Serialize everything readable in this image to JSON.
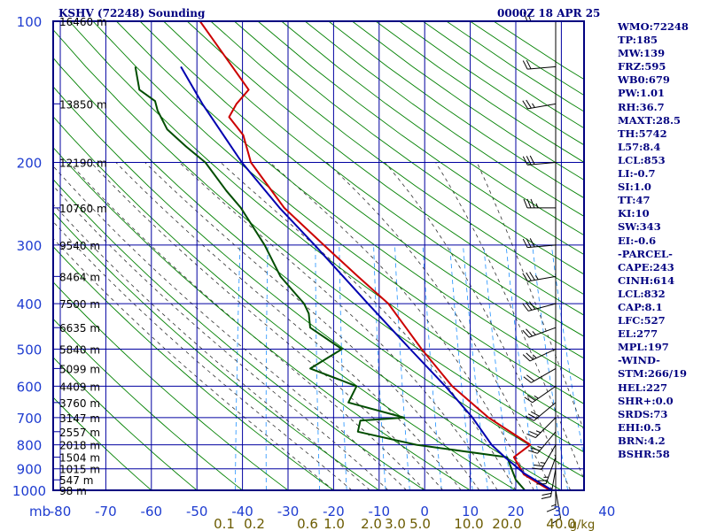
{
  "header": {
    "station": "KSHV (72248) Sounding",
    "time": "0000Z 18 APR 25"
  },
  "colors": {
    "frame": "#000080",
    "isobar": "#0000a0",
    "dry_adiabat": "#008000",
    "moist_adiabat": "#303030",
    "mixing_ratio": "#1e90ff",
    "temperature": "#cc0000",
    "dewpoint": "#004d00",
    "parcel": "#0000b0",
    "axis_label": "#1e3cd0",
    "mixing_label": "#6b5b00",
    "wind_barb": "#000000"
  },
  "indices": [
    "WMO:72248",
    "TP:185",
    "MW:139",
    "FRZ:595",
    "WB0:679",
    "PW:1.01",
    "RH:36.7",
    "MAXT:28.5",
    "TH:5742",
    "L57:8.4",
    "LCL:853",
    "LI:-0.7",
    "SI:1.0",
    "TT:47",
    "KI:10",
    "SW:343",
    "EI:-0.6",
    "-PARCEL-",
    "CAPE:243",
    "CINH:614",
    "LCL:832",
    "CAP:8.1",
    "LFC:527",
    "EL:277",
    "MPL:197",
    "-WIND-",
    "STM:266/19",
    "HEL:227",
    "SHR+:0.0",
    "SRDS:73",
    "EHI:0.5",
    "BRN:4.2",
    "BSHR:58"
  ],
  "chart_data": {
    "type": "line",
    "title": "KSHV (72248) Sounding",
    "diagram": "skew-T log-p",
    "x_axis": {
      "label": "",
      "unit_label": "mb",
      "ticks": [
        -80,
        -70,
        -60,
        -50,
        -40,
        -30,
        -20,
        -10,
        0,
        10,
        20,
        30,
        40
      ],
      "tick_labels": [
        "-80",
        "-70",
        "-60",
        "-50",
        "-40",
        "-30",
        "-20",
        "-10",
        "0",
        "10",
        "20",
        "30",
        "40"
      ]
    },
    "y_axis": {
      "scale": "log",
      "range": [
        1000,
        100
      ],
      "ticks": [
        100,
        200,
        300,
        400,
        500,
        600,
        700,
        800,
        900,
        1000
      ],
      "tick_labels": [
        "100",
        "200",
        "300",
        "400",
        "500",
        "600",
        "700",
        "800",
        "900",
        "1000"
      ]
    },
    "height_labels": [
      {
        "p": 100,
        "label": "16460 m"
      },
      {
        "p": 150,
        "label": "13850 m"
      },
      {
        "p": 200,
        "label": "12190 m"
      },
      {
        "p": 250,
        "label": "10760 m"
      },
      {
        "p": 300,
        "label": "9540 m"
      },
      {
        "p": 350,
        "label": "8464 m"
      },
      {
        "p": 400,
        "label": "7500 m"
      },
      {
        "p": 450,
        "label": "6635 m"
      },
      {
        "p": 500,
        "label": "5840 m"
      },
      {
        "p": 550,
        "label": "5099 m"
      },
      {
        "p": 600,
        "label": "4409 m"
      },
      {
        "p": 650,
        "label": "3760 m"
      },
      {
        "p": 700,
        "label": "3147 m"
      },
      {
        "p": 750,
        "label": "2557 m"
      },
      {
        "p": 800,
        "label": "2018 m"
      },
      {
        "p": 850,
        "label": "1504 m"
      },
      {
        "p": 900,
        "label": "1015 m"
      },
      {
        "p": 950,
        "label": "547 m"
      },
      {
        "p": 1000,
        "label": "98 m"
      }
    ],
    "mixing_ratio_labels": [
      "0.1",
      "0.2",
      "0.6",
      "1.0",
      "2.0",
      "3.0",
      "5.0",
      "10.0",
      "20.0",
      "40.0"
    ],
    "mixing_ratio_unit": "g/kg",
    "series": [
      {
        "name": "",
        "role": "temperature",
        "points": [
          {
            "p": 1000,
            "t": 27.5
          },
          {
            "p": 925,
            "t": 21
          },
          {
            "p": 850,
            "t": 18
          },
          {
            "p": 800,
            "t": 21
          },
          {
            "p": 700,
            "t": 10.5
          },
          {
            "p": 600,
            "t": 1
          },
          {
            "p": 500,
            "t": -7.5
          },
          {
            "p": 450,
            "t": -12
          },
          {
            "p": 400,
            "t": -17
          },
          {
            "p": 350,
            "t": -25
          },
          {
            "p": 300,
            "t": -34
          },
          {
            "p": 250,
            "t": -44.5
          },
          {
            "p": 200,
            "t": -54
          },
          {
            "p": 175,
            "t": -57
          },
          {
            "p": 160,
            "t": -61
          },
          {
            "p": 150,
            "t": -60
          },
          {
            "p": 140,
            "t": -58
          },
          {
            "p": 100,
            "t": -72
          }
        ]
      },
      {
        "name": "",
        "role": "dewpoint",
        "points": [
          {
            "p": 1000,
            "t": 22
          },
          {
            "p": 950,
            "t": 19.5
          },
          {
            "p": 850,
            "t": 16.5
          },
          {
            "p": 800,
            "t": -4
          },
          {
            "p": 750,
            "t": -17.5
          },
          {
            "p": 710,
            "t": -17.5
          },
          {
            "p": 700,
            "t": -8
          },
          {
            "p": 650,
            "t": -21
          },
          {
            "p": 600,
            "t": -20
          },
          {
            "p": 550,
            "t": -31
          },
          {
            "p": 500,
            "t": -25
          },
          {
            "p": 450,
            "t": -33
          },
          {
            "p": 420,
            "t": -34
          },
          {
            "p": 400,
            "t": -35.5
          },
          {
            "p": 350,
            "t": -42
          },
          {
            "p": 300,
            "t": -47
          },
          {
            "p": 250,
            "t": -54
          },
          {
            "p": 230,
            "t": -58
          },
          {
            "p": 200,
            "t": -64
          },
          {
            "p": 185,
            "t": -69
          },
          {
            "p": 170,
            "t": -74
          },
          {
            "p": 155,
            "t": -77
          },
          {
            "p": 148,
            "t": -78
          },
          {
            "p": 140,
            "t": -82
          },
          {
            "p": 125,
            "t": -84
          }
        ]
      },
      {
        "name": "",
        "role": "parcel",
        "points": [
          {
            "p": 1000,
            "t": 28
          },
          {
            "p": 920,
            "t": 21
          },
          {
            "p": 850,
            "t": 16
          },
          {
            "p": 800,
            "t": 12.5
          },
          {
            "p": 700,
            "t": 7
          },
          {
            "p": 600,
            "t": -0.5
          },
          {
            "p": 500,
            "t": -10
          },
          {
            "p": 400,
            "t": -21.5
          },
          {
            "p": 300,
            "t": -36
          },
          {
            "p": 250,
            "t": -45.5
          },
          {
            "p": 200,
            "t": -56
          },
          {
            "p": 150,
            "t": -67.5
          },
          {
            "p": 125,
            "t": -74
          }
        ]
      }
    ],
    "wind_barbs": [
      {
        "p": 100,
        "dir": 270,
        "spd": 15
      },
      {
        "p": 125,
        "dir": 265,
        "spd": 20
      },
      {
        "p": 150,
        "dir": 260,
        "spd": 25
      },
      {
        "p": 200,
        "dir": 265,
        "spd": 30
      },
      {
        "p": 250,
        "dir": 270,
        "spd": 35
      },
      {
        "p": 300,
        "dir": 265,
        "spd": 30
      },
      {
        "p": 350,
        "dir": 260,
        "spd": 35
      },
      {
        "p": 400,
        "dir": 255,
        "spd": 30
      },
      {
        "p": 450,
        "dir": 250,
        "spd": 25
      },
      {
        "p": 500,
        "dir": 245,
        "spd": 25
      },
      {
        "p": 550,
        "dir": 240,
        "spd": 20
      },
      {
        "p": 600,
        "dir": 235,
        "spd": 25
      },
      {
        "p": 650,
        "dir": 230,
        "spd": 30
      },
      {
        "p": 700,
        "dir": 225,
        "spd": 25
      },
      {
        "p": 750,
        "dir": 220,
        "spd": 25
      },
      {
        "p": 800,
        "dir": 210,
        "spd": 25
      },
      {
        "p": 850,
        "dir": 200,
        "spd": 25
      },
      {
        "p": 900,
        "dir": 190,
        "spd": 20
      },
      {
        "p": 950,
        "dir": 180,
        "spd": 15
      },
      {
        "p": 1000,
        "dir": 170,
        "spd": 10
      }
    ]
  }
}
